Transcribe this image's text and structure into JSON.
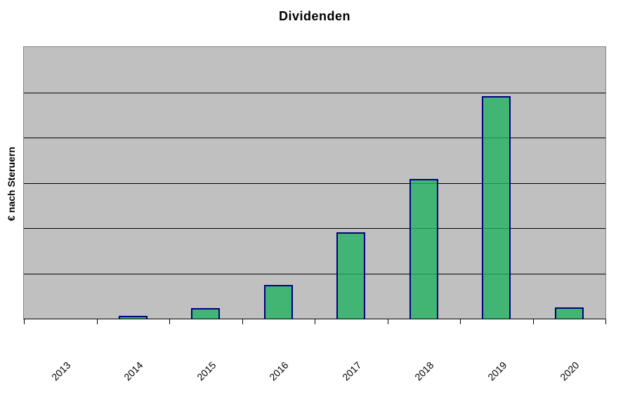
{
  "chart": {
    "title": "Dividenden",
    "y_axis_title": "€ nach Steruern"
  },
  "chart_data": {
    "type": "bar",
    "title": "Dividenden",
    "xlabel": "",
    "ylabel": "€ nach Steruern",
    "categories": [
      "2013",
      "2014",
      "2015",
      "2016",
      "2017",
      "2018",
      "2019",
      "2020"
    ],
    "values": [
      0,
      0.06,
      0.23,
      0.74,
      1.9,
      3.09,
      4.92,
      0.25
    ],
    "ylim": [
      0,
      6
    ],
    "y_major_unit": 1,
    "y_tick_labels_visible": false,
    "x_tick_label_rotation_deg": 45,
    "gridlines": "horizontal-major",
    "legend_position": "none",
    "colors": {
      "bar_fill_apparent": "#41B473",
      "bar_border": "#000080",
      "plot_background": "#C0C0C0",
      "plot_border": "#848484",
      "gridline": "#000000",
      "axis_line": "#000000",
      "text": "#000000"
    }
  }
}
